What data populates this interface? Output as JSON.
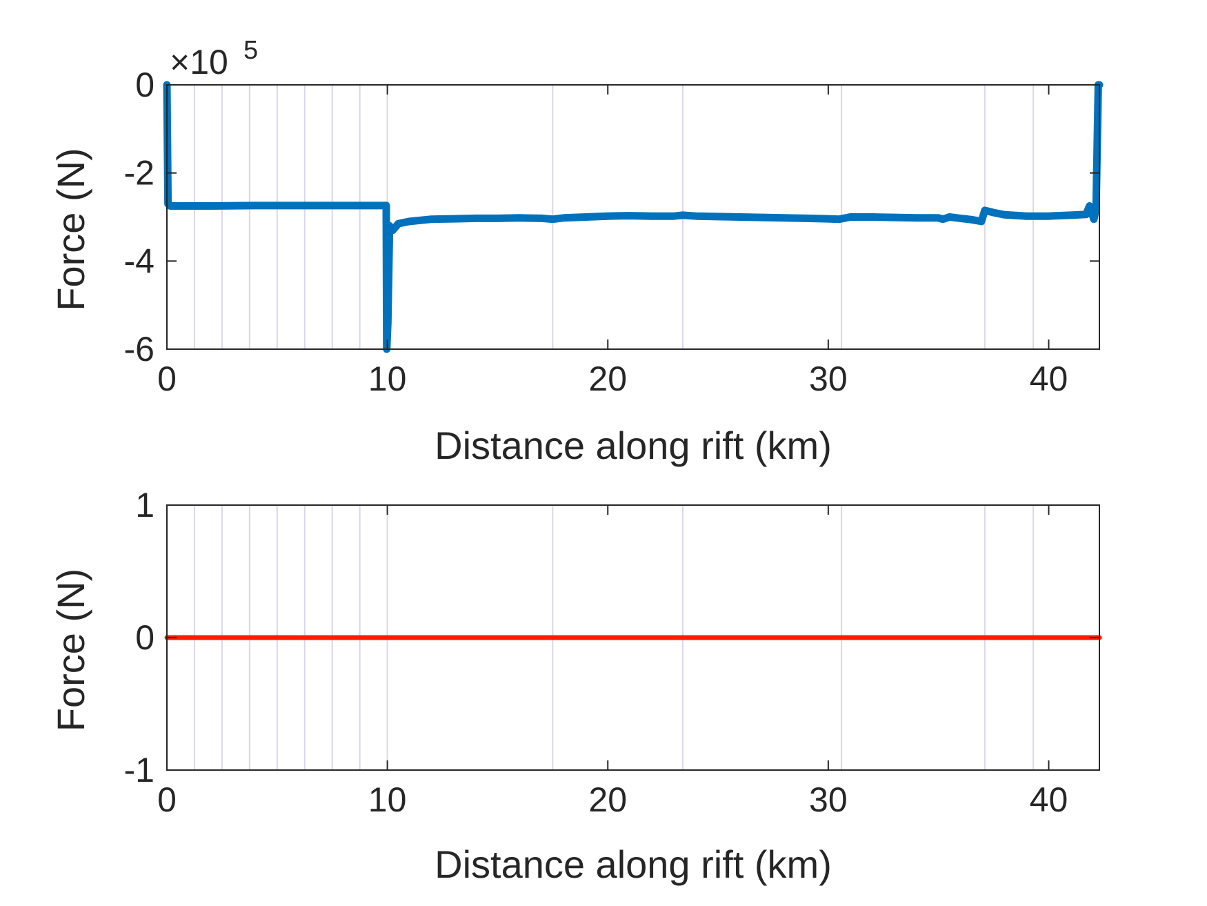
{
  "chart_data": [
    {
      "type": "line",
      "title": "",
      "xlabel": "Distance along rift (km)",
      "ylabel": "Force (N)",
      "y_exponent_label": "×10",
      "y_exponent_power": "5",
      "xlim": [
        0,
        42.3
      ],
      "ylim": [
        -6,
        0
      ],
      "xticks": [
        0,
        10,
        20,
        30,
        40
      ],
      "yticks": [
        -6,
        -4,
        -2,
        0
      ],
      "ytick_labels": [
        "-6",
        "-4",
        "-2",
        "0"
      ],
      "grid": false,
      "vertical_markers": [
        1.25,
        2.5,
        3.75,
        5.0,
        6.25,
        7.5,
        8.75,
        10.0,
        17.5,
        23.4,
        30.6,
        37.1,
        39.3
      ],
      "marker_color": "#ddd4ee",
      "series": [
        {
          "color": "#0072bd",
          "x": [
            0,
            0.05,
            0.15,
            2,
            4,
            6,
            8,
            9.95,
            9.97,
            10.02,
            10.1,
            10.25,
            10.5,
            11,
            12,
            13,
            14,
            15,
            16,
            17,
            17.5,
            18,
            19,
            20,
            21,
            22,
            23,
            23.4,
            24,
            25,
            26,
            27,
            28,
            29,
            30,
            30.5,
            31,
            32,
            33,
            34,
            35,
            35.2,
            35.5,
            36,
            36.5,
            36.95,
            37.1,
            37.5,
            38,
            39,
            40,
            41,
            41.7,
            41.85,
            42.05,
            42.15,
            42.25,
            42.3
          ],
          "y": [
            0,
            -2.7,
            -2.75,
            -2.75,
            -2.74,
            -2.74,
            -2.74,
            -2.74,
            -6.0,
            -5.4,
            -3.2,
            -3.3,
            -3.15,
            -3.1,
            -3.05,
            -3.04,
            -3.03,
            -3.03,
            -3.02,
            -3.03,
            -3.05,
            -3.02,
            -3.0,
            -2.98,
            -2.97,
            -2.98,
            -2.98,
            -2.96,
            -2.98,
            -2.99,
            -3.0,
            -3.01,
            -3.02,
            -3.03,
            -3.04,
            -3.05,
            -3.0,
            -3.0,
            -3.01,
            -3.02,
            -3.02,
            -3.05,
            -3.0,
            -3.03,
            -3.06,
            -3.1,
            -2.85,
            -2.9,
            -2.95,
            -2.98,
            -2.98,
            -2.96,
            -2.94,
            -2.75,
            -3.05,
            -2.8,
            0,
            0
          ]
        }
      ]
    },
    {
      "type": "line",
      "title": "",
      "xlabel": "Distance along rift (km)",
      "ylabel": "Force (N)",
      "xlim": [
        0,
        42.3
      ],
      "ylim": [
        -1,
        1
      ],
      "xticks": [
        0,
        10,
        20,
        30,
        40
      ],
      "yticks": [
        -1,
        0,
        1
      ],
      "ytick_labels": [
        "-1",
        "0",
        "1"
      ],
      "grid": false,
      "vertical_markers": [
        1.25,
        2.5,
        3.75,
        5.0,
        6.25,
        7.5,
        8.75,
        10.0,
        17.5,
        23.4,
        30.6,
        37.1,
        39.3
      ],
      "marker_color": "#ddd4ee",
      "series": [
        {
          "color": "#ff1a00",
          "x": [
            0,
            42.3
          ],
          "y": [
            0,
            0
          ]
        }
      ]
    }
  ]
}
